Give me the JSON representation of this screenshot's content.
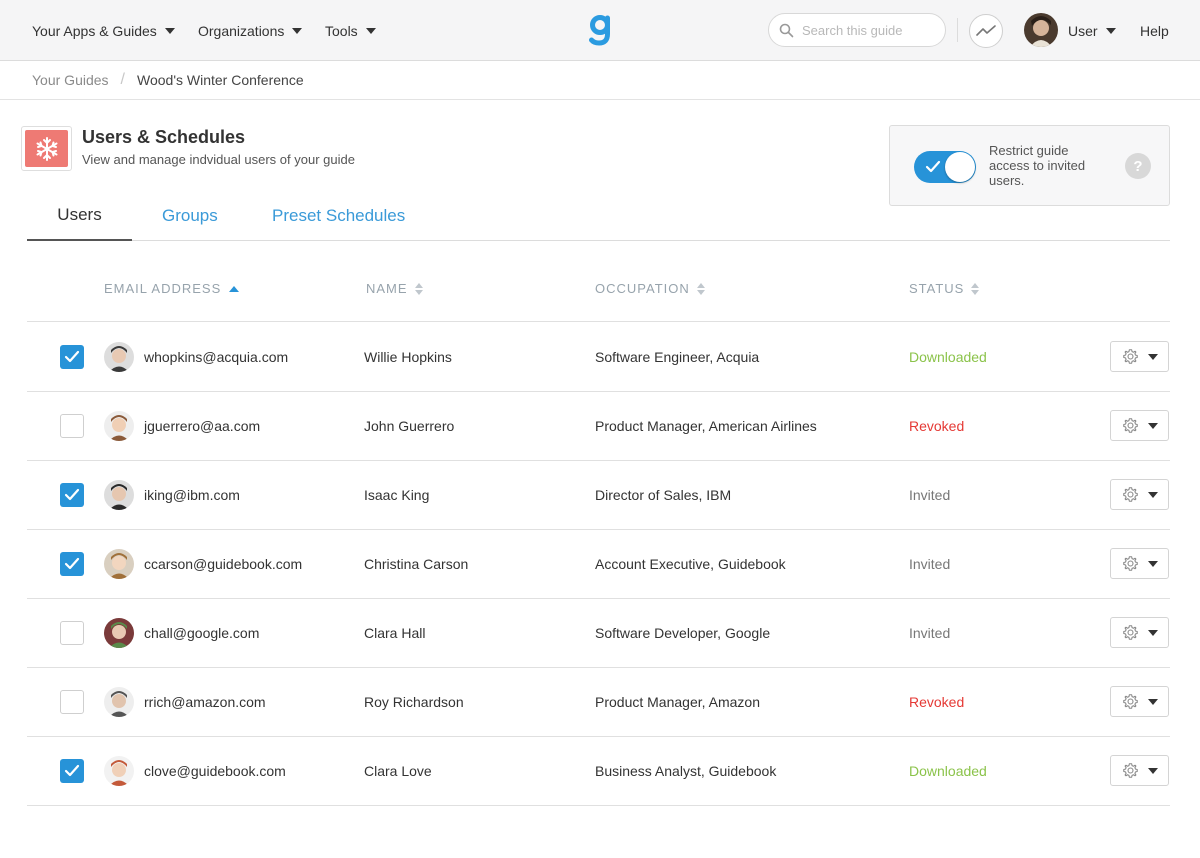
{
  "nav": {
    "apps_label": "Your Apps & Guides",
    "orgs_label": "Organizations",
    "tools_label": "Tools",
    "search_placeholder": "Search this guide",
    "user_label": "User",
    "help_label": "Help"
  },
  "breadcrumb": {
    "parent": "Your Guides",
    "current": "Wood's Winter Conference"
  },
  "header": {
    "title": "Users & Schedules",
    "subtitle": "View and manage indvidual users of your guide",
    "icon": "snowflake-icon"
  },
  "restrict": {
    "text": "Restrict guide access to invited users.",
    "enabled": true,
    "help": "?"
  },
  "tabs": [
    {
      "label": "Users",
      "active": true
    },
    {
      "label": "Groups",
      "active": false
    },
    {
      "label": "Preset Schedules",
      "active": false
    }
  ],
  "table": {
    "columns": [
      "EMAIL ADDRESS",
      "NAME",
      "OCCUPATION",
      "STATUS"
    ],
    "sorted_column": "EMAIL ADDRESS",
    "rows": [
      {
        "checked": true,
        "email": "whopkins@acquia.com",
        "name": "Willie Hopkins",
        "occupation": "Software Engineer, Acquia",
        "status": "Downloaded"
      },
      {
        "checked": false,
        "email": "jguerrero@aa.com",
        "name": "John Guerrero",
        "occupation": "Product Manager, American Airlines",
        "status": "Revoked"
      },
      {
        "checked": true,
        "email": "iking@ibm.com",
        "name": "Isaac King",
        "occupation": "Director of Sales, IBM",
        "status": "Invited"
      },
      {
        "checked": true,
        "email": "ccarson@guidebook.com",
        "name": "Christina Carson",
        "occupation": "Account Executive, Guidebook",
        "status": "Invited"
      },
      {
        "checked": false,
        "email": "chall@google.com",
        "name": "Clara Hall",
        "occupation": "Software Developer, Google",
        "status": "Invited"
      },
      {
        "checked": false,
        "email": "rrich@amazon.com",
        "name": "Roy Richardson",
        "occupation": "Product Manager, Amazon",
        "status": "Revoked"
      },
      {
        "checked": true,
        "email": "clove@guidebook.com",
        "name": "Clara Love",
        "occupation": "Business Analyst, Guidebook",
        "status": "Downloaded"
      }
    ]
  },
  "colors": {
    "accent": "#2793d8",
    "downloaded": "#8bc34a",
    "revoked": "#e53935",
    "invited": "#777777",
    "icon_bg": "#ee7a74"
  }
}
